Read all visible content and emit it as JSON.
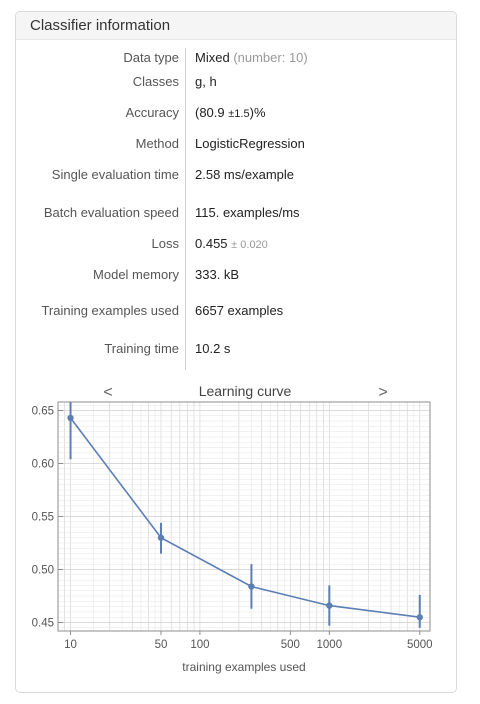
{
  "panel": {
    "title": "Classifier information"
  },
  "rows": {
    "data_type": {
      "label": "Data type",
      "value": "Mixed",
      "extra": "(number: 10)"
    },
    "classes": {
      "label": "Classes",
      "value": "g, h"
    },
    "accuracy": {
      "label": "Accuracy",
      "open": "(80.9",
      "pm": "±1.5",
      "close": ")%"
    },
    "method": {
      "label": "Method",
      "value": "LogisticRegression"
    },
    "single_eval": {
      "label": "Single evaluation time",
      "value": "2.58 ms/example"
    },
    "batch_eval": {
      "label": "Batch evaluation speed",
      "value": "115. examples/ms"
    },
    "loss": {
      "label": "Loss",
      "value": "0.455",
      "pm": "± 0.020"
    },
    "memory": {
      "label": "Model memory",
      "value": "333. kB"
    },
    "examples_used": {
      "label": "Training examples used",
      "value": "6657 examples"
    },
    "training_time": {
      "label": "Training time",
      "value": "10.2 s"
    }
  },
  "chart_nav": {
    "prev_icon": "chevron-left-icon",
    "prev": "<",
    "next_icon": "chevron-right-icon",
    "next": ">"
  },
  "colors": {
    "series": "#5b7fb5",
    "grid": "#cfcfcf",
    "frame": "#8c8c8c"
  },
  "chart_data": {
    "type": "line",
    "title": "Learning curve",
    "xlabel": "training examples used",
    "ylabel": "",
    "x_scale": "log",
    "xlim": [
      8,
      6000
    ],
    "ylim": [
      0.442,
      0.658
    ],
    "grid": true,
    "x_ticks": [
      10,
      50,
      100,
      500,
      1000,
      5000
    ],
    "x_tick_labels": [
      "10",
      "50",
      "100",
      "500",
      "1000",
      "5000"
    ],
    "y_ticks": [
      0.45,
      0.5,
      0.55,
      0.6,
      0.65
    ],
    "y_tick_labels": [
      "0.45",
      "0.50",
      "0.55",
      "0.60",
      "0.65"
    ],
    "series": [
      {
        "x": [
          10,
          50,
          250,
          1000,
          5000
        ],
        "y": [
          0.643,
          0.53,
          0.484,
          0.466,
          0.455
        ],
        "err_low": [
          0.604,
          0.515,
          0.463,
          0.447,
          0.445
        ],
        "err_high": [
          0.66,
          0.544,
          0.505,
          0.485,
          0.476
        ]
      }
    ]
  }
}
